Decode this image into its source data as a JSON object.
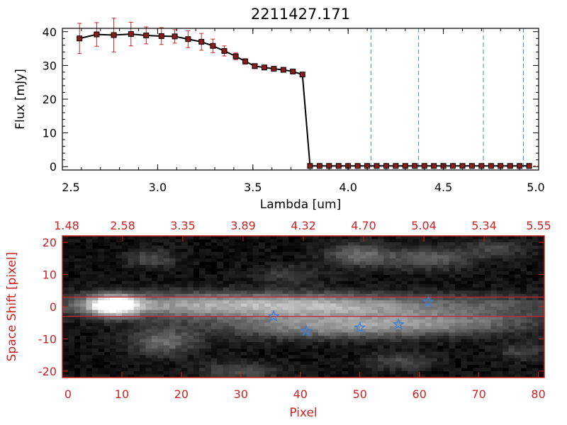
{
  "colors": {
    "accent_red": "#cc2222",
    "line_black": "#000000",
    "marker_fill": "#8b1a1a",
    "dash_blue": "#3a8fd0",
    "star_blue": "#3a7fd8"
  },
  "chart_data": [
    {
      "type": "line",
      "title": "2211427.171",
      "xlabel": "Lambda [um]",
      "ylabel": "Flux [mJy]",
      "xlim": [
        2.5,
        5.0
      ],
      "ylim": [
        -1,
        41
      ],
      "xticks": [
        2.5,
        3.0,
        3.5,
        4.0,
        4.5,
        5.0
      ],
      "xtick_labels": [
        "2.5",
        "3.0",
        "3.5",
        "4.0",
        "4.5",
        "5.0"
      ],
      "yticks": [
        0,
        10,
        20,
        30,
        40
      ],
      "ytick_labels": [
        "0",
        "10",
        "20",
        "30",
        "40"
      ],
      "grid": false,
      "series": [
        {
          "x": [
            2.59,
            2.68,
            2.77,
            2.86,
            2.94,
            3.02,
            3.09,
            3.16,
            3.23,
            3.29,
            3.35,
            3.41,
            3.46,
            3.51,
            3.56,
            3.61,
            3.66,
            3.71,
            3.76,
            3.8,
            3.85,
            3.9,
            3.95,
            4.0,
            4.05,
            4.1,
            4.15,
            4.2,
            4.25,
            4.3,
            4.35,
            4.4,
            4.45,
            4.5,
            4.55,
            4.6,
            4.65,
            4.7,
            4.75,
            4.8,
            4.85,
            4.9,
            4.95
          ],
          "y": [
            38.0,
            39.2,
            39.0,
            39.3,
            38.9,
            38.7,
            38.6,
            37.8,
            37.0,
            35.8,
            34.3,
            32.7,
            31.2,
            29.8,
            29.4,
            29.0,
            28.7,
            28.2,
            27.3,
            0.2,
            0.2,
            0.2,
            0.2,
            0.2,
            0.2,
            0.2,
            0.2,
            0.2,
            0.2,
            0.2,
            0.2,
            0.2,
            0.2,
            0.2,
            0.2,
            0.2,
            0.2,
            0.2,
            0.2,
            0.2,
            0.2,
            0.2,
            0.2
          ],
          "yerr": [
            4.5,
            3.5,
            5.0,
            3.5,
            2.5,
            2.5,
            2.0,
            2.5,
            2.5,
            2.0,
            1.5,
            1.0,
            0.8,
            0.5,
            0.5,
            0.5,
            0.5,
            0.5,
            0.5,
            0,
            0,
            0,
            0,
            0,
            0,
            0,
            0,
            0,
            0,
            0,
            0,
            0,
            0,
            0,
            0,
            0,
            0,
            0,
            0,
            0,
            0,
            0,
            0
          ]
        }
      ],
      "reference_lines_x": [
        4.12,
        4.37,
        4.71,
        4.92
      ]
    },
    {
      "type": "heatmap",
      "xlabel": "Pixel",
      "ylabel": "Space Shift [pixel]",
      "xlim": [
        0,
        81
      ],
      "ylim": [
        -22,
        22
      ],
      "xticks": [
        0,
        10,
        20,
        30,
        40,
        50,
        60,
        70,
        80
      ],
      "xtick_labels": [
        "0",
        "10",
        "20",
        "30",
        "40",
        "50",
        "60",
        "70",
        "80"
      ],
      "yticks": [
        -20,
        -10,
        0,
        10,
        20
      ],
      "ytick_labels": [
        "-20",
        "-10",
        "0",
        "10",
        "20"
      ],
      "top_axis_labels": [
        "1.48",
        "2.58",
        "3.35",
        "3.89",
        "4.32",
        "4.70",
        "5.04",
        "5.34",
        "5.55"
      ],
      "horizontal_lines_y": [
        3,
        -3
      ],
      "stars": [
        {
          "x": 35.5,
          "y": -3
        },
        {
          "x": 41,
          "y": -7.5
        },
        {
          "x": 50,
          "y": -6.5
        },
        {
          "x": 56.5,
          "y": -5.5
        },
        {
          "x": 61.5,
          "y": 1.5
        }
      ]
    }
  ]
}
